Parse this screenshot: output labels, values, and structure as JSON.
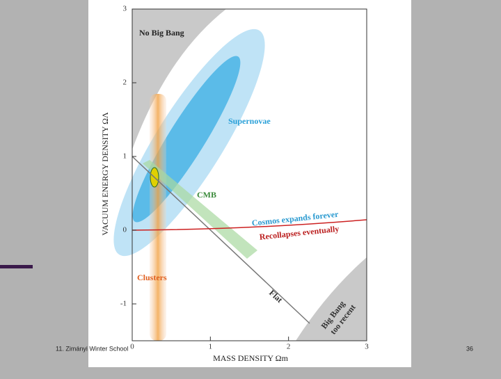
{
  "chart_data": {
    "type": "contour",
    "xlabel": "MASS DENSITY Ωm",
    "ylabel": "VACUUM ENERGY DENSITY ΩΛ",
    "xlim": [
      0,
      3
    ],
    "ylim": [
      -1.5,
      3
    ],
    "xticks": [
      0,
      1,
      2,
      3
    ],
    "yticks": [
      -1,
      0,
      1,
      2,
      3
    ],
    "annotations": [
      "No Big Bang",
      "Supernovae",
      "CMB",
      "Cosmos expands forever",
      "Recollapses eventually",
      "Clusters",
      "Flat",
      "Big Bang",
      "too recent"
    ]
  },
  "footer": {
    "left": "11. Zimányi Winter School",
    "page": "36"
  }
}
